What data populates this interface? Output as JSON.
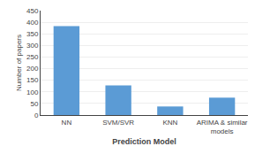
{
  "chart_data": {
    "type": "bar",
    "categories": [
      "NN",
      "SVM/SVR",
      "KNN",
      "ARIMA & similar\nmodels"
    ],
    "values": [
      383,
      128,
      37,
      75
    ],
    "color": "#5b9bd5",
    "xlabel": "Prediction Model",
    "ylabel": "Number of papers",
    "ylim": [
      0,
      450
    ],
    "yticks": [
      0,
      50,
      100,
      150,
      200,
      250,
      300,
      350,
      400,
      450
    ],
    "grid": true
  }
}
